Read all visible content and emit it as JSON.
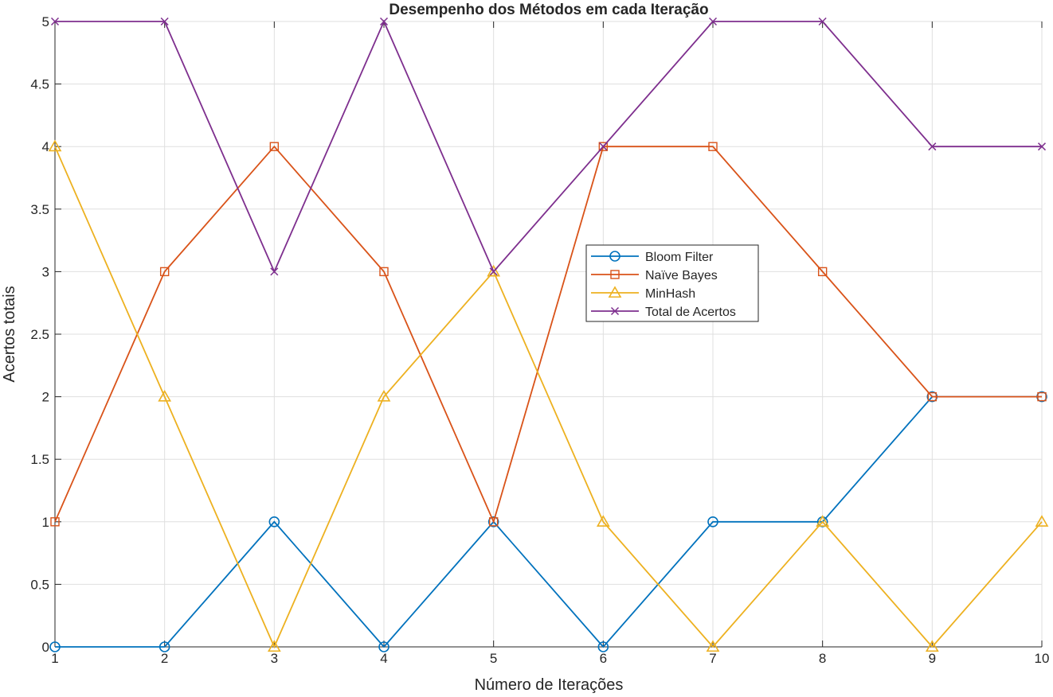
{
  "chart_data": {
    "type": "line",
    "title": "Desempenho dos Métodos em cada Iteração",
    "xlabel": "Número de Iterações",
    "ylabel": "Acertos totais",
    "x": [
      1,
      2,
      3,
      4,
      5,
      6,
      7,
      8,
      9,
      10
    ],
    "xlim": [
      1,
      10
    ],
    "ylim": [
      0,
      5
    ],
    "xticks": [
      1,
      2,
      3,
      4,
      5,
      6,
      7,
      8,
      9,
      10
    ],
    "yticks": [
      0,
      0.5,
      1,
      1.5,
      2,
      2.5,
      3,
      3.5,
      4,
      4.5,
      5
    ],
    "grid": true,
    "legend_position": "center-right",
    "series": [
      {
        "name": "Bloom Filter",
        "color": "#0072BD",
        "marker": "circle",
        "values": [
          0,
          0,
          1,
          0,
          1,
          0,
          1,
          1,
          2,
          2
        ]
      },
      {
        "name": "Naïve Bayes",
        "color": "#D95319",
        "marker": "square",
        "values": [
          1,
          3,
          4,
          3,
          1,
          4,
          4,
          3,
          2,
          2
        ]
      },
      {
        "name": "MinHash",
        "color": "#EDB120",
        "marker": "triangle",
        "values": [
          4,
          2,
          0,
          2,
          3,
          1,
          0,
          1,
          0,
          1
        ]
      },
      {
        "name": "Total de Acertos",
        "color": "#7E2F8E",
        "marker": "x",
        "values": [
          5,
          5,
          3,
          5,
          3,
          4,
          5,
          5,
          4,
          4
        ]
      }
    ]
  }
}
